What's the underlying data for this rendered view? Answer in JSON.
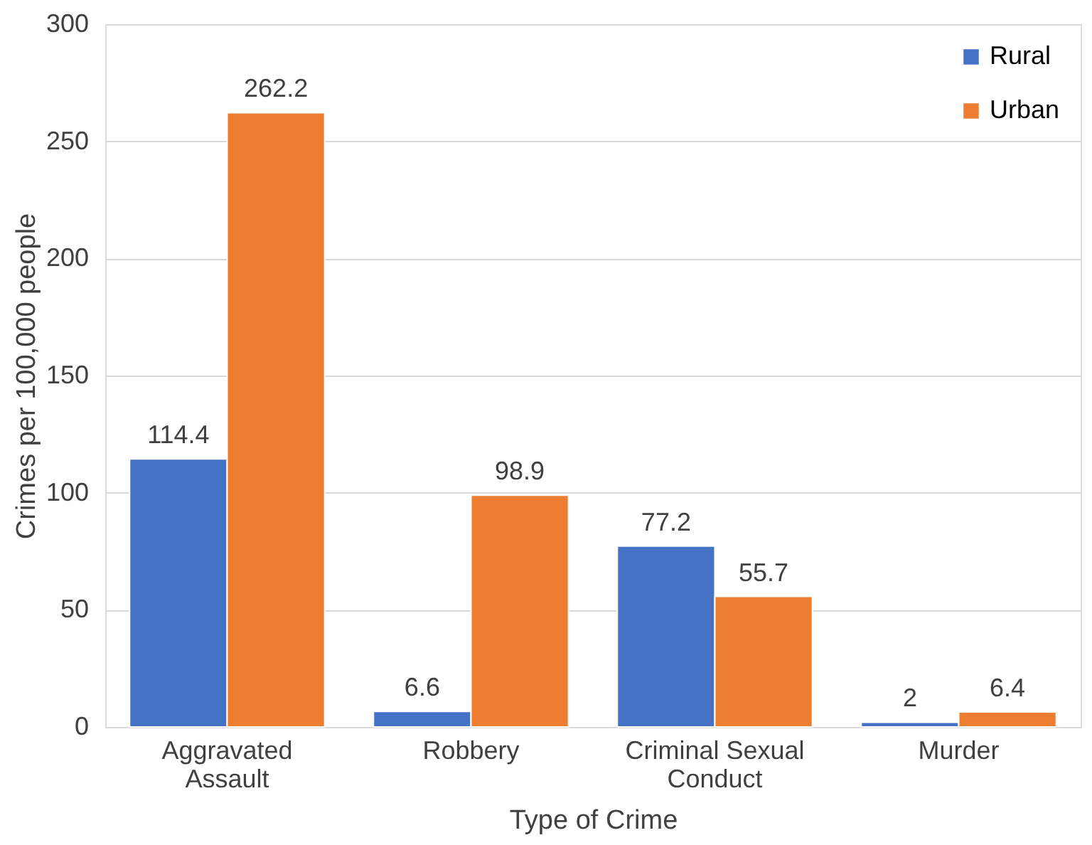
{
  "chart_data": {
    "type": "bar",
    "xlabel": "Type of Crime",
    "ylabel": "Crimes per 100,000 people",
    "categories": [
      "Aggravated Assault",
      "Robbery",
      "Criminal Sexual Conduct",
      "Murder"
    ],
    "series": [
      {
        "name": "Rural",
        "color": "#4472c4",
        "values": [
          114.4,
          6.6,
          77.2,
          2
        ]
      },
      {
        "name": "Urban",
        "color": "#ed7d31",
        "values": [
          262.2,
          98.9,
          55.7,
          6.4
        ]
      }
    ],
    "ylim": [
      0,
      300
    ],
    "yticks": [
      0,
      50,
      100,
      150,
      200,
      250,
      300
    ],
    "grid": "y",
    "legend": "top right",
    "data_labels": true
  }
}
